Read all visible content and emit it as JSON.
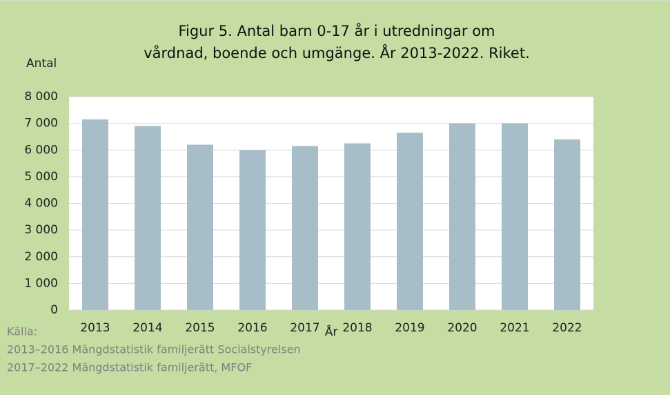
{
  "chart_data": {
    "type": "bar",
    "title": [
      "Figur 5. Antal barn 0-17 år i utredningar om",
      "vårdnad, boende och umgänge. År 2013-2022. Riket."
    ],
    "y_label": "Antal",
    "x_label": "År",
    "categories": [
      "2013",
      "2014",
      "2015",
      "2016",
      "2017",
      "2018",
      "2019",
      "2020",
      "2021",
      "2022"
    ],
    "values": [
      7150,
      6900,
      6200,
      6000,
      6150,
      6250,
      6650,
      7000,
      7000,
      6400
    ],
    "color": "#a7bec8",
    "ylim": [
      0,
      8000
    ],
    "yticks": [
      0,
      {
        "value": 1000,
        "label": "1 000"
      },
      {
        "value": 2000,
        "label": "2 000"
      },
      {
        "value": 3000,
        "label": "3 000"
      },
      {
        "value": 4000,
        "label": "4 000"
      },
      {
        "value": 5000,
        "label": "5 000"
      },
      {
        "value": 6000,
        "label": "6 000"
      },
      {
        "value": 7000,
        "label": "7 000"
      },
      {
        "value": 8000,
        "label": "8 000"
      }
    ],
    "grid": true,
    "source": [
      "Källa:",
      "2013–2016 Mängdstatistik familjerätt Socialstyrelsen",
      "2017–2022 Mängdstatistik familjerätt, MFOF"
    ]
  }
}
